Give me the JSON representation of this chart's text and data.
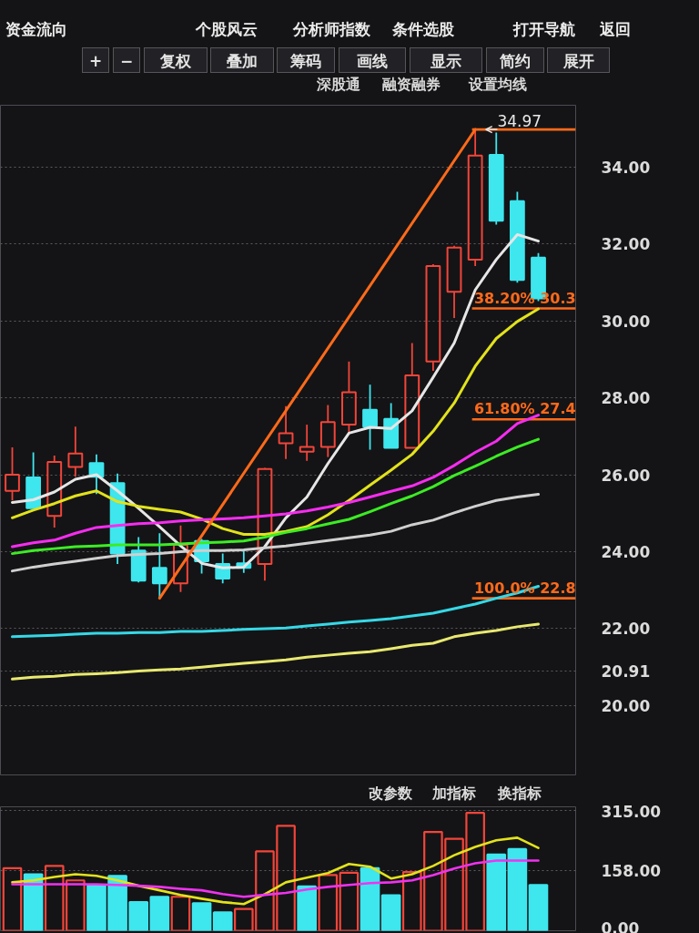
{
  "chart_data": [
    {
      "type": "candlestick",
      "categories": [
        null,
        null,
        null,
        null,
        null,
        null,
        null,
        null,
        null,
        null,
        null,
        null,
        null,
        null,
        null,
        null,
        null,
        null,
        null,
        null,
        null,
        null,
        null,
        null,
        null,
        null
      ],
      "ohlc": [
        [
          25.58,
          26.71,
          25.33,
          26.0
        ],
        [
          25.93,
          26.58,
          25.13,
          25.13
        ],
        [
          24.93,
          26.5,
          24.63,
          26.33
        ],
        [
          26.2,
          27.25,
          25.95,
          26.55
        ],
        [
          26.3,
          26.53,
          25.5,
          25.95
        ],
        [
          25.78,
          26.03,
          23.68,
          23.95
        ],
        [
          24.03,
          24.38,
          23.2,
          23.25
        ],
        [
          23.58,
          24.48,
          22.79,
          23.18
        ],
        [
          23.18,
          24.68,
          22.95,
          24.18
        ],
        [
          24.28,
          24.33,
          23.43,
          23.75
        ],
        [
          23.68,
          23.95,
          23.18,
          23.3
        ],
        [
          23.7,
          24.05,
          23.45,
          23.58
        ],
        [
          23.68,
          26.18,
          23.25,
          26.15
        ],
        [
          26.82,
          27.78,
          26.41,
          27.08
        ],
        [
          26.6,
          27.3,
          26.36,
          26.72
        ],
        [
          26.72,
          27.81,
          26.46,
          27.37
        ],
        [
          27.3,
          28.94,
          27.06,
          28.14
        ],
        [
          27.69,
          28.34,
          26.65,
          27.25
        ],
        [
          27.45,
          27.86,
          26.7,
          26.7
        ],
        [
          26.7,
          29.42,
          26.7,
          28.58
        ],
        [
          28.94,
          31.47,
          28.7,
          31.42
        ],
        [
          30.75,
          31.95,
          30.07,
          31.9
        ],
        [
          31.59,
          34.97,
          31.42,
          34.29
        ],
        [
          34.31,
          34.89,
          32.5,
          32.6
        ],
        [
          33.11,
          33.35,
          30.99,
          31.06
        ],
        [
          31.64,
          31.76,
          30.51,
          30.58
        ]
      ],
      "colors": [
        "#f2453a",
        "#3ee6ee",
        "#f2453a",
        "#f2453a",
        "#3ee6ee",
        "#3ee6ee",
        "#3ee6ee",
        "#3ee6ee",
        "#f2453a",
        "#3ee6ee",
        "#3ee6ee",
        "#3ee6ee",
        "#f2453a",
        "#f2453a",
        "#f2453a",
        "#f2453a",
        "#f2453a",
        "#3ee6ee",
        "#3ee6ee",
        "#f2453a",
        "#f2453a",
        "#f2453a",
        "#f2453a",
        "#3ee6ee",
        "#3ee6ee",
        "#3ee6ee"
      ],
      "series": [
        {
          "type": "line",
          "color": "#e6e6e6",
          "values": [
            25.28,
            25.35,
            25.55,
            25.88,
            26.0,
            25.58,
            25.13,
            24.65,
            24.15,
            23.7,
            23.58,
            23.6,
            24.13,
            24.88,
            25.42,
            26.29,
            27.08,
            27.23,
            27.2,
            27.66,
            28.53,
            29.42,
            30.8,
            31.59,
            32.24,
            32.07
          ]
        },
        {
          "type": "line",
          "color": "#e2e21c",
          "values": [
            24.88,
            25.08,
            25.25,
            25.45,
            25.58,
            25.3,
            25.18,
            25.1,
            25.03,
            24.85,
            24.6,
            24.45,
            24.45,
            24.53,
            24.65,
            24.96,
            25.33,
            25.73,
            26.12,
            26.53,
            27.13,
            27.86,
            28.82,
            29.54,
            29.98,
            30.31
          ]
        },
        {
          "type": "line",
          "color": "#f62cf0",
          "values": [
            24.13,
            24.23,
            24.3,
            24.48,
            24.63,
            24.68,
            24.73,
            24.75,
            24.8,
            24.83,
            24.85,
            24.88,
            24.93,
            24.98,
            25.06,
            25.16,
            25.28,
            25.42,
            25.57,
            25.71,
            25.93,
            26.24,
            26.58,
            26.87,
            27.33,
            27.55
          ]
        },
        {
          "type": "line",
          "color": "#3cec24",
          "values": [
            23.95,
            24.03,
            24.08,
            24.13,
            24.15,
            24.18,
            24.18,
            24.18,
            24.2,
            24.23,
            24.25,
            24.28,
            24.38,
            24.5,
            24.6,
            24.72,
            24.84,
            25.04,
            25.25,
            25.45,
            25.69,
            25.98,
            26.22,
            26.48,
            26.72,
            26.92
          ]
        },
        {
          "type": "line",
          "color": "#cfcfcf",
          "values": [
            23.5,
            23.6,
            23.68,
            23.75,
            23.83,
            23.9,
            23.93,
            23.95,
            24.0,
            24.03,
            24.03,
            24.05,
            24.1,
            24.15,
            24.22,
            24.29,
            24.36,
            24.43,
            24.53,
            24.7,
            24.82,
            25.01,
            25.18,
            25.33,
            25.42,
            25.49
          ]
        },
        {
          "type": "line",
          "color": "#36d8e6",
          "values": [
            21.79,
            21.81,
            21.83,
            21.86,
            21.88,
            21.88,
            21.9,
            21.9,
            21.93,
            21.93,
            21.95,
            21.98,
            22.0,
            22.02,
            22.07,
            22.12,
            22.17,
            22.21,
            22.26,
            22.33,
            22.4,
            22.52,
            22.64,
            22.79,
            22.93,
            23.1
          ]
        },
        {
          "type": "line",
          "color": "#e8e870",
          "values": [
            20.69,
            20.74,
            20.76,
            20.81,
            20.83,
            20.86,
            20.9,
            20.93,
            20.95,
            21.0,
            21.05,
            21.1,
            21.14,
            21.19,
            21.26,
            21.31,
            21.36,
            21.4,
            21.48,
            21.57,
            21.62,
            21.79,
            21.88,
            21.95,
            22.05,
            22.12
          ]
        },
        {
          "type": "line",
          "color": "#ff6a1a",
          "values": [
            null,
            null,
            null,
            null,
            null,
            null,
            null,
            22.79,
            null,
            null,
            null,
            null,
            null,
            null,
            null,
            null,
            null,
            null,
            null,
            null,
            null,
            null,
            34.97,
            null,
            null,
            null
          ]
        }
      ],
      "ylim": [
        18.2,
        35.6
      ],
      "yticks": [
        {
          "value": 20,
          "label": "20.00"
        },
        {
          "value": 20.91,
          "label": "20.91"
        },
        {
          "value": 22,
          "label": "22.00"
        },
        {
          "value": 24,
          "label": "24.00"
        },
        {
          "value": 26,
          "label": "26.00"
        },
        {
          "value": 28,
          "label": "28.00"
        },
        {
          "value": 30,
          "label": "30.00"
        },
        {
          "value": 32,
          "label": "32.00"
        },
        {
          "value": 34,
          "label": "34.00"
        }
      ],
      "grid": "y",
      "tick_labels": "y",
      "ref_lines": [
        {
          "axis": "y",
          "value": 34.97,
          "color": "#ff6a1a"
        },
        {
          "axis": "y",
          "value": 30.32,
          "label": "38.20% 30.3",
          "color": "#ff6a1a"
        },
        {
          "axis": "y",
          "value": 27.44,
          "label": "61.80% 27.4",
          "color": "#ff6a1a"
        },
        {
          "axis": "y",
          "value": 22.79,
          "label": "100.0% 22.8",
          "color": "#ff6a1a"
        }
      ],
      "annotations": [
        "资金流向",
        "个股风云",
        "分析师指数",
        "条件选股",
        "打开导航",
        "返回",
        "+",
        "−",
        "复权",
        "叠加",
        "筹码",
        "画线",
        "显示",
        "简约",
        "展开",
        "深股通",
        "融资融券",
        "设置均线",
        {
          "text": "34.97",
          "y": 34.97
        }
      ]
    },
    {
      "type": "bar",
      "categories": [
        null,
        null,
        null,
        null,
        null,
        null,
        null,
        null,
        null,
        null,
        null,
        null,
        null,
        null,
        null,
        null,
        null,
        null,
        null,
        null,
        null,
        null,
        null,
        null,
        null,
        null
      ],
      "series": [
        {
          "type": "bar",
          "colors": [
            "#f2453a",
            "#3ee6ee",
            "#f2453a",
            "#f2453a",
            "#3ee6ee",
            "#3ee6ee",
            "#3ee6ee",
            "#3ee6ee",
            "#f2453a",
            "#3ee6ee",
            "#3ee6ee",
            "#f2453a",
            "#f2453a",
            "#f2453a",
            "#3ee6ee",
            "#f2453a",
            "#f2453a",
            "#3ee6ee",
            "#3ee6ee",
            "#f2453a",
            "#f2453a",
            "#f2453a",
            "#f2453a",
            "#3ee6ee",
            "#3ee6ee",
            "#3ee6ee"
          ],
          "values": [
            164,
            148,
            170,
            132,
            120,
            144,
            75,
            89,
            89,
            72,
            48,
            57,
            208,
            275,
            116,
            146,
            152,
            164,
            93,
            154,
            259,
            241,
            309,
            200,
            214,
            120
          ]
        },
        {
          "type": "line",
          "color": "#e2e21c",
          "values": [
            127,
            132,
            141,
            148,
            144,
            132,
            118,
            106,
            94,
            84,
            75,
            70,
            96,
            127,
            139,
            151,
            175,
            168,
            137,
            148,
            170,
            198,
            220,
            237,
            244,
            217
          ]
        },
        {
          "type": "line",
          "color": "#f032f0",
          "values": [
            122,
            122,
            122,
            122,
            122,
            120,
            118,
            115,
            110,
            106,
            96,
            89,
            94,
            99,
            108,
            115,
            120,
            125,
            127,
            132,
            146,
            163,
            177,
            184,
            184,
            184
          ]
        }
      ],
      "ylim": [
        0,
        325
      ],
      "yticks": [
        {
          "value": 0,
          "label": "0.00"
        },
        {
          "value": 158,
          "label": "158.00"
        },
        {
          "value": 315,
          "label": "315.00"
        }
      ],
      "grid": "y",
      "tick_labels": "y",
      "annotations": [
        "改参数",
        "加指标",
        "换指标"
      ]
    }
  ]
}
